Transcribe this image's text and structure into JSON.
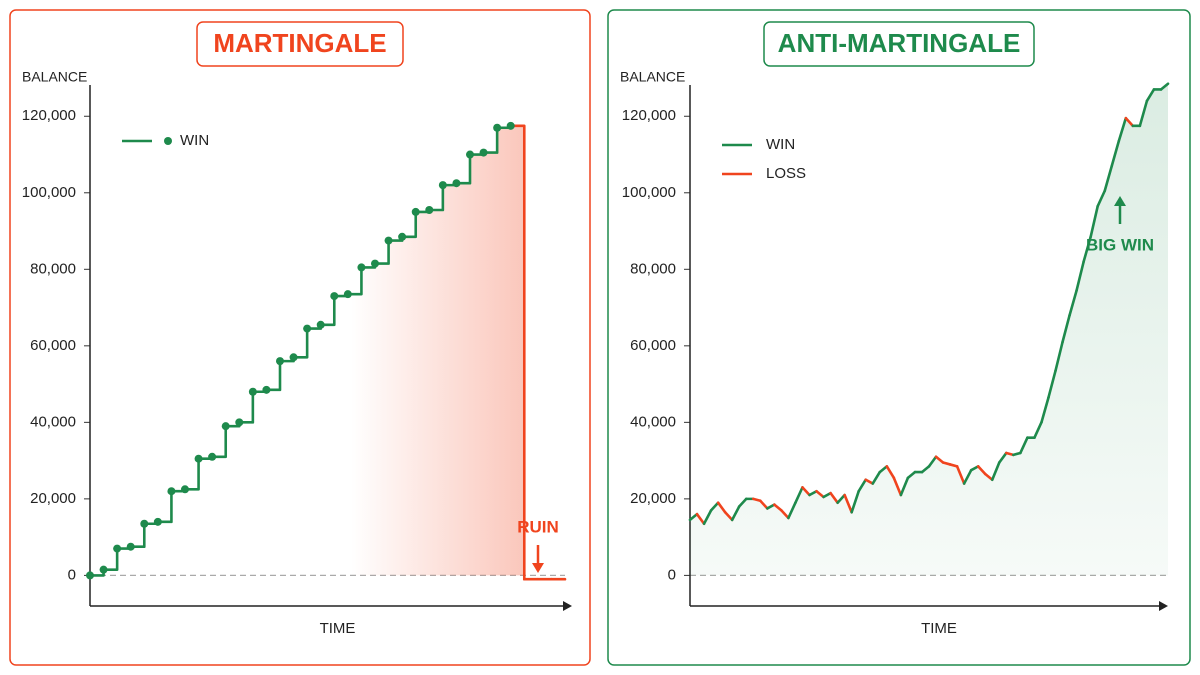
{
  "chart_data": [
    {
      "type": "line",
      "step": true,
      "markers": true,
      "area": true,
      "title": "MARTINGALE",
      "color": "#f0441e",
      "ylabel": "BALANCE",
      "xlabel": "TIME",
      "ylim": [
        -8000,
        130000
      ],
      "yticks": [
        0,
        {
          "value": 20000,
          "label": "20,000"
        },
        {
          "value": 40000,
          "label": "40,000"
        },
        {
          "value": 60000,
          "label": "60,000"
        },
        {
          "value": 80000,
          "label": "80,000"
        },
        {
          "value": 100000,
          "label": "100,000"
        },
        {
          "value": 120000,
          "label": "120,000"
        }
      ],
      "series": [
        {
          "name": "WIN",
          "color": "#1e8a4c",
          "values": [
            0,
            1500,
            7000,
            7500,
            13500,
            14000,
            22000,
            22500,
            30500,
            31000,
            39000,
            40000,
            48000,
            48500,
            56000,
            57000,
            64500,
            65500,
            73000,
            73500,
            80500,
            81500,
            87500,
            88500,
            95000,
            95500,
            102000,
            102500,
            110000,
            110500,
            117000,
            117500,
            -1000,
            -1000,
            -1000,
            -1000
          ]
        }
      ],
      "annotation": {
        "text": "RUIN",
        "color": "#f0441e"
      }
    },
    {
      "type": "line",
      "step": false,
      "markers": false,
      "area": true,
      "title": "ANTI-MARTINGALE",
      "color": "#1e8a4c",
      "ylabel": "BALANCE",
      "xlabel": "TIME",
      "ylim": [
        -8000,
        130000
      ],
      "yticks": [
        0,
        {
          "value": 20000,
          "label": "20,000"
        },
        {
          "value": 40000,
          "label": "40,000"
        },
        {
          "value": 60000,
          "label": "60,000"
        },
        {
          "value": 80000,
          "label": "80,000"
        },
        {
          "value": 100000,
          "label": "100,000"
        },
        {
          "value": 120000,
          "label": "120,000"
        }
      ],
      "values": [
        14500,
        16000,
        13500,
        17000,
        19000,
        16500,
        14500,
        18000,
        20000,
        20000,
        19500,
        17500,
        18500,
        17000,
        15000,
        19000,
        23000,
        21000,
        22000,
        20500,
        21500,
        19000,
        21000,
        16500,
        22000,
        25000,
        24000,
        27000,
        28500,
        25500,
        21000,
        25500,
        27000,
        27000,
        28500,
        31000,
        29500,
        29000,
        28500,
        24000,
        27500,
        28500,
        26500,
        25000,
        29500,
        32000,
        31500,
        32000,
        36000,
        36000,
        40000,
        46500,
        53500,
        61000,
        68000,
        74500,
        82000,
        88500,
        96500,
        100500,
        107000,
        113500,
        119500,
        117500,
        117500,
        124000,
        127000,
        127000,
        128500
      ],
      "series": [
        {
          "name": "WIN",
          "color": "#1e8a4c"
        },
        {
          "name": "LOSS",
          "color": "#f0441e"
        }
      ],
      "annotation": {
        "text": "BIG WIN",
        "color": "#1e8a4c"
      }
    }
  ]
}
